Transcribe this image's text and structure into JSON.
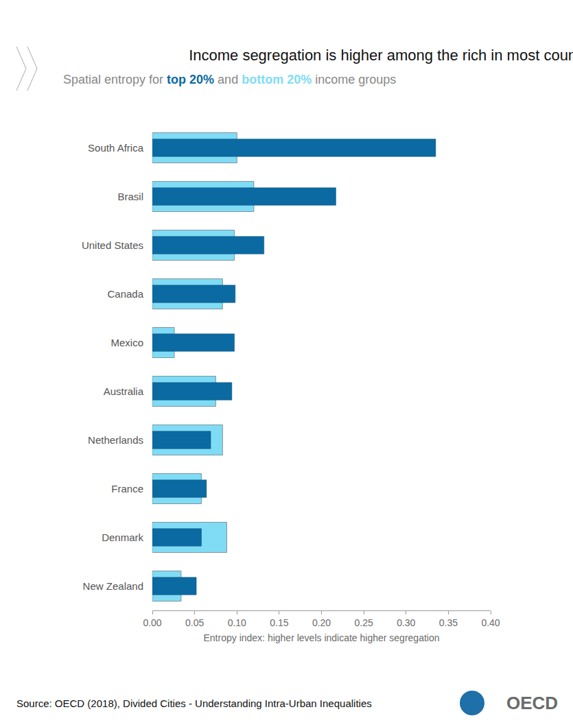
{
  "chart_data": {
    "type": "bar",
    "orientation": "horizontal",
    "title": "Income segregation is higher among the rich in most countries",
    "subtitle": "Spatial entropy for top 20% and bottom 20% income groups",
    "x_label": "Entropy index: higher levels indicate higher segregation",
    "source": "Source: OECD (2018), Divided Cities - Understanding Intra-Urban Inequalities",
    "logo": "OECD",
    "categories": [
      "South Africa",
      "Brasil",
      "United States",
      "Canada",
      "Mexico",
      "Australia",
      "Netherlands",
      "France",
      "Denmark",
      "New Zealand"
    ],
    "series": [
      {
        "name": "bottom 20%",
        "color": "#80dcf5",
        "values": [
          0.1,
          0.12,
          0.097,
          0.083,
          0.026,
          0.075,
          0.083,
          0.058,
          0.088,
          0.034
        ]
      },
      {
        "name": "top 20%",
        "color": "#0b6aa2",
        "values": [
          0.335,
          0.217,
          0.132,
          0.098,
          0.097,
          0.094,
          0.069,
          0.064,
          0.058,
          0.052
        ]
      }
    ],
    "xlim": [
      0,
      0.4
    ],
    "xticks": [
      {
        "value": 0,
        "label": "0.00"
      },
      {
        "value": 0.05,
        "label": "0.05"
      },
      {
        "value": 0.1,
        "label": "0.10"
      },
      {
        "value": 0.15,
        "label": "0.15"
      },
      {
        "value": 0.2,
        "label": "0.20"
      },
      {
        "value": 0.25,
        "label": "0.25"
      },
      {
        "value": 0.3,
        "label": "0.30"
      },
      {
        "value": 0.35,
        "label": "0.35"
      },
      {
        "value": 0.4,
        "label": "0.40"
      }
    ],
    "grid": false,
    "stacked": false,
    "data_labels": false
  }
}
